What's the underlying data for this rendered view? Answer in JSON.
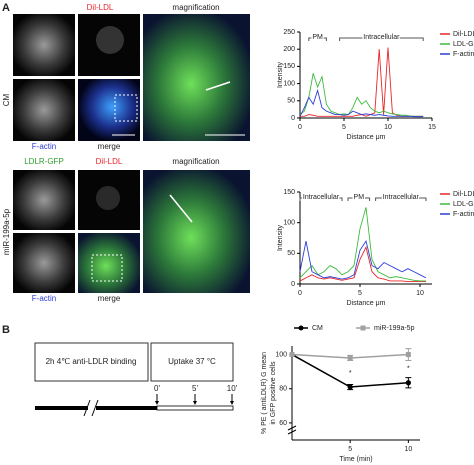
{
  "figure": {
    "panel_a": "A",
    "panel_b": "B",
    "row1": {
      "side_label": "CM",
      "labels": [
        "Dil-LDL",
        "magnification",
        "F-actin",
        "merge"
      ]
    },
    "row2": {
      "side_label": "miR-199a-5p",
      "labels": [
        "LDLR-GFP",
        "Dil-LDL",
        "magnification",
        "F-actin",
        "merge"
      ]
    },
    "diagram": {
      "binding": "2h 4℃ anti-LDLR binding",
      "uptake": "Uptake 37 °C",
      "times": [
        "0'",
        "5'",
        "10'"
      ]
    }
  },
  "chart_data": [
    {
      "type": "line",
      "ylabel": "Intensity",
      "xlabel": "Distance μm",
      "legend": "right",
      "regions": [
        "PM",
        "Intracellular"
      ],
      "x": [
        0,
        0.5,
        1,
        1.5,
        2,
        2.5,
        3,
        3.5,
        4,
        4.5,
        5,
        5.5,
        6,
        6.5,
        7,
        7.5,
        8,
        8.5,
        9,
        9.5,
        10,
        10.5,
        11,
        11.5,
        12,
        12.5,
        13,
        13.5,
        14
      ],
      "xlim": [
        0,
        15
      ],
      "xticks": [
        0,
        5,
        10,
        15
      ],
      "ylim": [
        0,
        250
      ],
      "yticks": [
        0,
        50,
        100,
        150,
        200,
        250
      ],
      "series": [
        {
          "name": "Dil-LDL",
          "color": "#e8262a",
          "values": [
            5,
            5,
            10,
            8,
            5,
            5,
            5,
            5,
            5,
            5,
            5,
            5,
            5,
            8,
            10,
            5,
            10,
            15,
            200,
            10,
            205,
            15,
            8,
            5,
            5,
            5,
            5,
            5,
            5
          ]
        },
        {
          "name": "LDL-GFP",
          "color": "#3dbb3d",
          "values": [
            10,
            20,
            60,
            130,
            90,
            120,
            40,
            20,
            15,
            10,
            12,
            10,
            30,
            60,
            40,
            50,
            30,
            20,
            15,
            20,
            15,
            12,
            10,
            8,
            8,
            6,
            5,
            5,
            5
          ]
        },
        {
          "name": "F-actin",
          "color": "#2b3fd6",
          "values": [
            5,
            30,
            60,
            40,
            80,
            30,
            20,
            15,
            10,
            10,
            8,
            10,
            20,
            15,
            10,
            12,
            10,
            8,
            10,
            8,
            6,
            5,
            5,
            5,
            5,
            5,
            4,
            4,
            4
          ]
        }
      ]
    },
    {
      "type": "line",
      "ylabel": "Intensity",
      "xlabel": "Distance μm",
      "legend": "right",
      "regions": [
        "Intracellular",
        "PM",
        "Intracellular"
      ],
      "x": [
        0,
        0.5,
        1,
        1.5,
        2,
        2.5,
        3,
        3.5,
        4,
        4.5,
        5,
        5.5,
        6,
        6.5,
        7,
        7.5,
        8,
        8.5,
        9,
        9.5,
        10,
        10.5
      ],
      "xlim": [
        0,
        11
      ],
      "xticks": [
        0,
        5,
        10
      ],
      "ylim": [
        0,
        150
      ],
      "yticks": [
        0,
        50,
        100,
        150
      ],
      "series": [
        {
          "name": "Dil-LDL",
          "color": "#e8262a",
          "values": [
            5,
            10,
            15,
            10,
            8,
            10,
            8,
            6,
            8,
            10,
            40,
            60,
            20,
            10,
            8,
            5,
            5,
            5,
            4,
            4,
            4,
            4
          ]
        },
        {
          "name": "LDL-GFP",
          "color": "#3dbb3d",
          "values": [
            10,
            20,
            30,
            15,
            20,
            30,
            25,
            15,
            20,
            30,
            90,
            125,
            40,
            20,
            15,
            10,
            12,
            10,
            8,
            6,
            5,
            5
          ]
        },
        {
          "name": "F-actin",
          "color": "#2b3fd6",
          "values": [
            20,
            70,
            20,
            15,
            10,
            12,
            10,
            8,
            10,
            15,
            55,
            70,
            30,
            25,
            35,
            30,
            25,
            20,
            25,
            20,
            15,
            10
          ]
        }
      ]
    },
    {
      "type": "line",
      "ylabel": [
        "% PE ( antiLDLR) G mean",
        "in GFP positive cells"
      ],
      "xlabel": "Time (min)",
      "legend": "top",
      "x": [
        0,
        5,
        10
      ],
      "xlim": [
        0,
        11
      ],
      "xticks": [
        5,
        10
      ],
      "ylim": [
        50,
        105
      ],
      "yticks": [
        60,
        80,
        100
      ],
      "series": [
        {
          "name": "CM",
          "color": "#000000",
          "marker": "circle",
          "values": [
            100,
            81,
            83.5
          ],
          "errors": [
            0,
            1.5,
            3
          ],
          "significance": [
            null,
            "*",
            "*"
          ]
        },
        {
          "name": "miR-199a-5p",
          "color": "#a0a0a0",
          "marker": "square",
          "values": [
            100,
            98,
            100
          ],
          "errors": [
            0,
            1.5,
            3.5
          ]
        }
      ]
    }
  ]
}
